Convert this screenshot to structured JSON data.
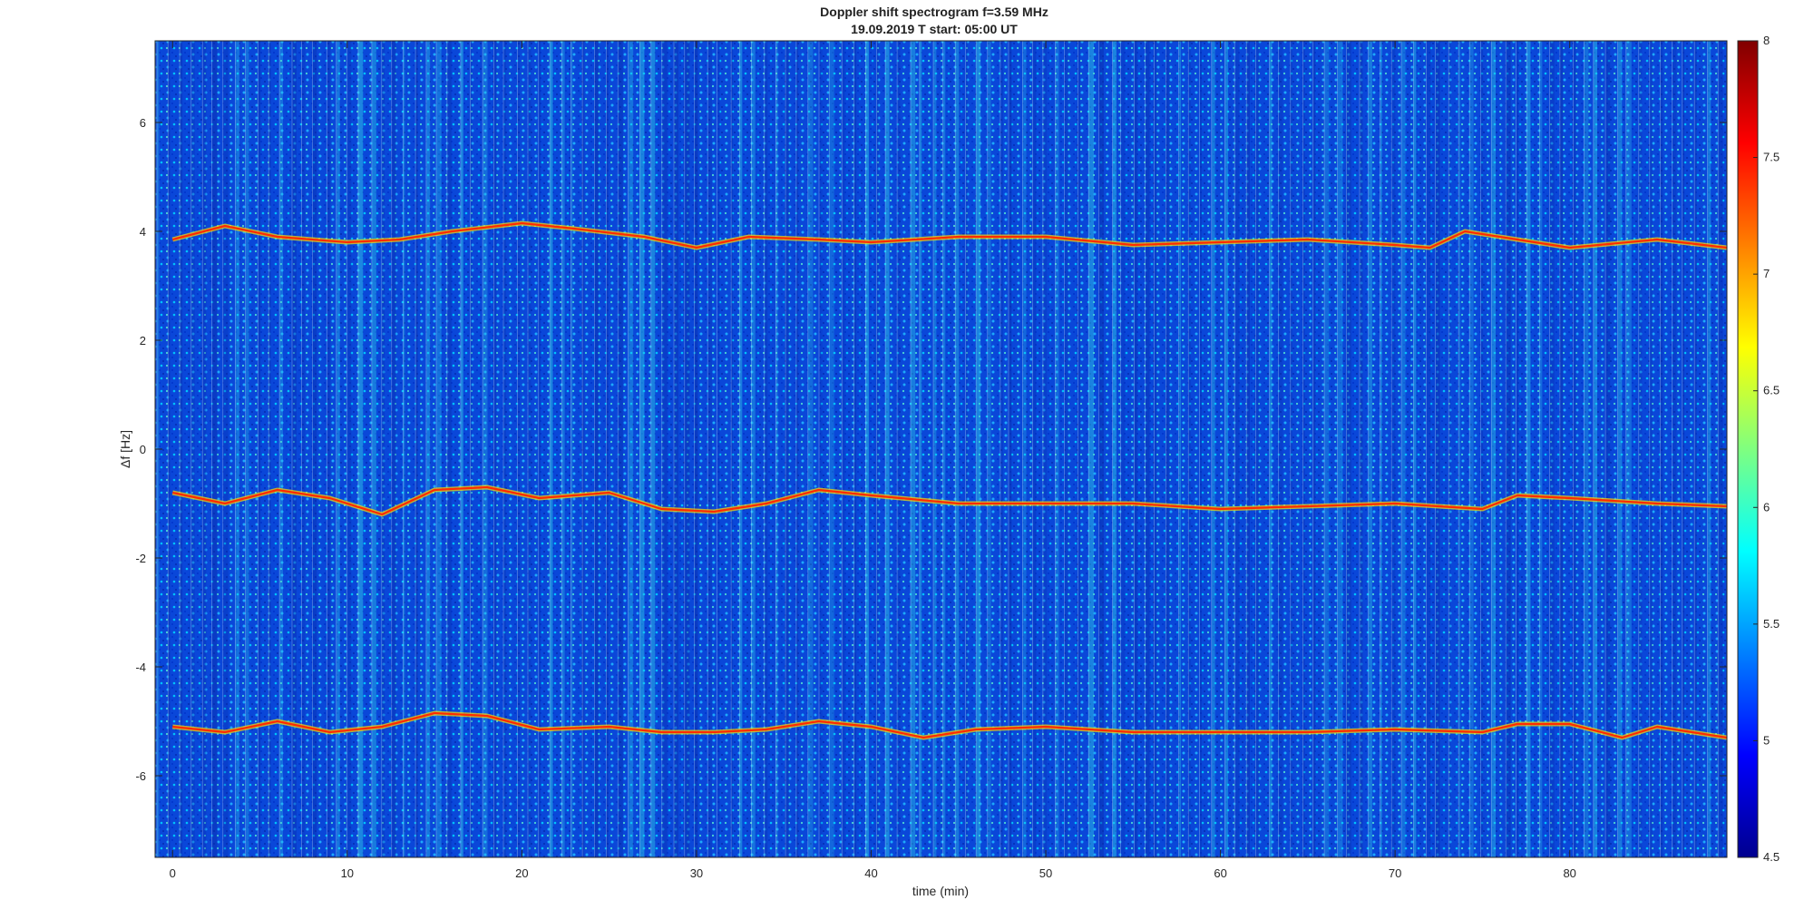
{
  "window": {
    "title_line1": "Doppler shift spectrogram f=3.59 MHz",
    "title_line2": "19.09.2019   T start: 05:00 UT"
  },
  "chart_data": {
    "type": "heatmap",
    "title": "Doppler shift spectrogram f=3.59 MHz",
    "subtitle": "19.09.2019   T start: 05:00 UT",
    "xlabel": "time (min)",
    "ylabel": "Δf [Hz]",
    "xlim": [
      -1,
      89
    ],
    "ylim": [
      -7.5,
      7.5
    ],
    "x_ticks": [
      0,
      10,
      20,
      30,
      40,
      50,
      60,
      70,
      80
    ],
    "y_ticks": [
      -6,
      -4,
      -2,
      0,
      2,
      4,
      6
    ],
    "colorbar": {
      "colormap": "jet",
      "range": [
        4.5,
        8
      ],
      "ticks": [
        4.5,
        5,
        5.5,
        6,
        6.5,
        7,
        7.5,
        8
      ]
    },
    "background_level": 5.2,
    "series": [
      {
        "x": [
          0,
          3,
          6,
          10,
          13,
          16,
          20,
          23,
          27,
          30,
          33,
          37,
          40,
          45,
          50,
          55,
          60,
          65,
          70,
          72,
          74,
          77,
          80,
          85,
          89
        ],
        "values": [
          3.85,
          4.1,
          3.9,
          3.8,
          3.85,
          4.0,
          4.15,
          4.05,
          3.9,
          3.7,
          3.9,
          3.85,
          3.8,
          3.9,
          3.9,
          3.75,
          3.8,
          3.85,
          3.75,
          3.7,
          4.0,
          3.85,
          3.7,
          3.85,
          3.7
        ]
      },
      {
        "x": [
          0,
          3,
          6,
          9,
          12,
          15,
          18,
          21,
          25,
          28,
          31,
          34,
          37,
          40,
          45,
          50,
          55,
          60,
          65,
          70,
          75,
          77,
          80,
          85,
          89
        ],
        "values": [
          -0.8,
          -1.0,
          -0.75,
          -0.9,
          -1.2,
          -0.75,
          -0.7,
          -0.9,
          -0.8,
          -1.1,
          -1.15,
          -1.0,
          -0.75,
          -0.85,
          -1.0,
          -1.0,
          -1.0,
          -1.1,
          -1.05,
          -1.0,
          -1.1,
          -0.85,
          -0.9,
          -1.0,
          -1.05
        ]
      },
      {
        "x": [
          0,
          3,
          6,
          9,
          12,
          15,
          18,
          21,
          25,
          28,
          31,
          34,
          37,
          40,
          43,
          46,
          50,
          55,
          60,
          65,
          70,
          75,
          77,
          80,
          83,
          85,
          89
        ],
        "values": [
          -5.1,
          -5.2,
          -5.0,
          -5.2,
          -5.1,
          -4.85,
          -4.9,
          -5.15,
          -5.1,
          -5.2,
          -5.2,
          -5.15,
          -5.0,
          -5.1,
          -5.3,
          -5.15,
          -5.1,
          -5.2,
          -5.2,
          -5.2,
          -5.15,
          -5.2,
          -5.05,
          -5.05,
          -5.3,
          -5.1,
          -5.3
        ]
      }
    ]
  }
}
